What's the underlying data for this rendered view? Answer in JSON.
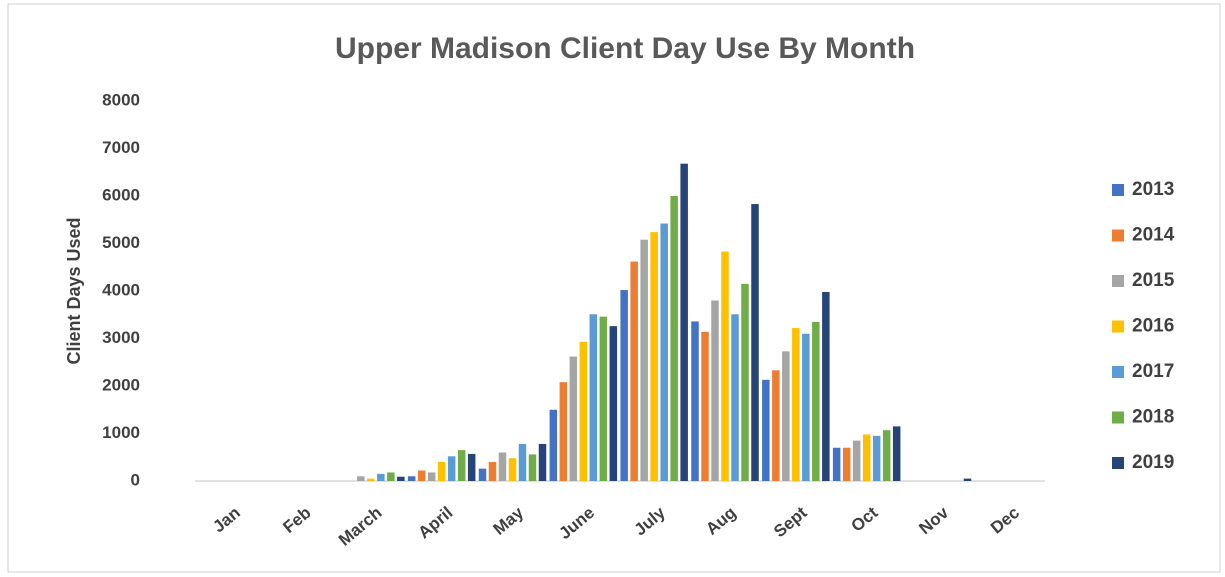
{
  "chart_data": {
    "type": "bar",
    "title": "Upper Madison Client Day Use By Month",
    "y_label": "Client Days Used",
    "categories": [
      "Jan",
      "Feb",
      "March",
      "April",
      "May",
      "June",
      "July",
      "Aug",
      "Sept",
      "Oct",
      "Nov",
      "Dec"
    ],
    "series": [
      {
        "name": "2013",
        "color": "#4472c4",
        "values": [
          0,
          0,
          0,
          100,
          260,
          1500,
          4020,
          3360,
          2130,
          700,
          0,
          0
        ]
      },
      {
        "name": "2014",
        "color": "#ed7d31",
        "values": [
          0,
          0,
          0,
          220,
          400,
          2080,
          4620,
          3140,
          2330,
          700,
          0,
          0
        ]
      },
      {
        "name": "2015",
        "color": "#a5a5a5",
        "values": [
          0,
          0,
          100,
          180,
          600,
          2620,
          5080,
          3800,
          2730,
          850,
          0,
          0
        ]
      },
      {
        "name": "2016",
        "color": "#ffc000",
        "values": [
          0,
          0,
          50,
          400,
          480,
          2930,
          5240,
          4830,
          3220,
          980,
          0,
          0
        ]
      },
      {
        "name": "2017",
        "color": "#5b9bd5",
        "values": [
          0,
          0,
          150,
          520,
          780,
          3510,
          5420,
          3510,
          3100,
          950,
          0,
          0
        ]
      },
      {
        "name": "2018",
        "color": "#70ad47",
        "values": [
          0,
          0,
          180,
          650,
          560,
          3460,
          6000,
          4150,
          3350,
          1070,
          0,
          0
        ]
      },
      {
        "name": "2019",
        "color": "#264478",
        "values": [
          0,
          0,
          90,
          570,
          780,
          3260,
          6680,
          5830,
          3980,
          1150,
          50,
          0
        ]
      }
    ],
    "ylim": [
      0,
      8000
    ],
    "yticks": [
      0,
      1000,
      2000,
      3000,
      4000,
      5000,
      6000,
      7000,
      8000
    ],
    "legend": "right"
  }
}
